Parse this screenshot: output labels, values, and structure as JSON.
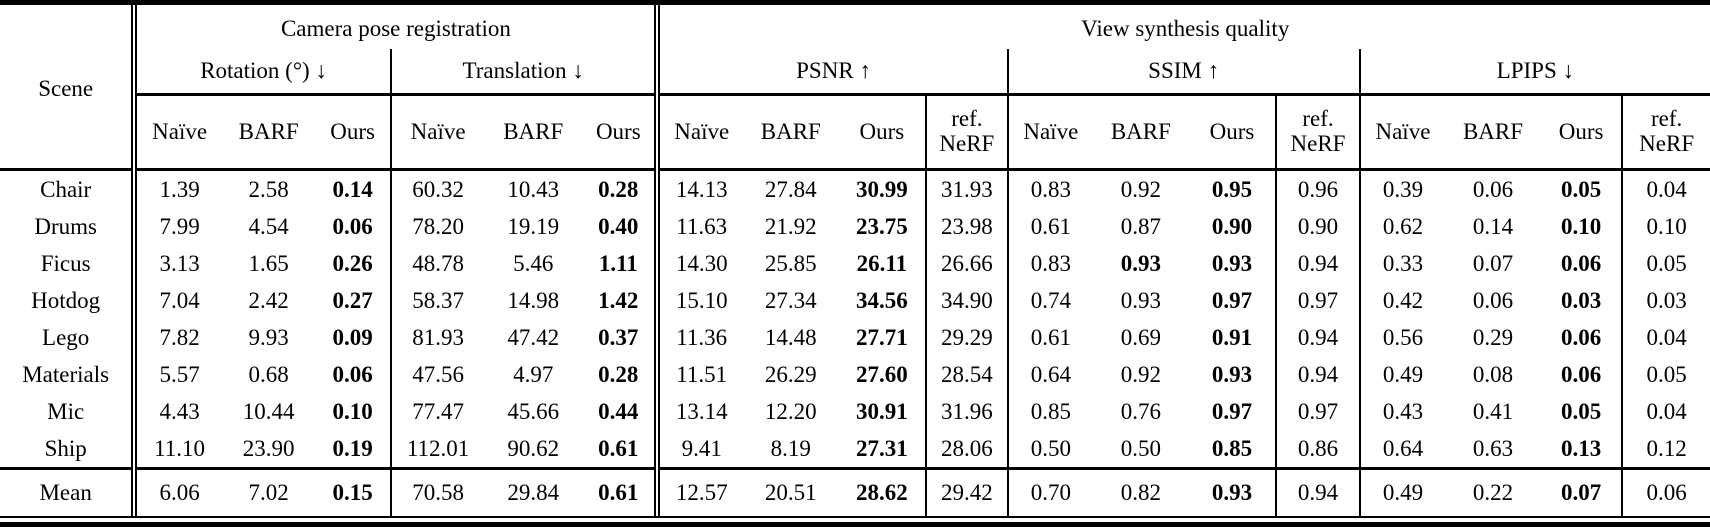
{
  "page": {
    "background": "#ffffff",
    "text_color": "#000000"
  },
  "table": {
    "row_header_label": "Scene",
    "groups": [
      {
        "label": "Camera pose registration"
      },
      {
        "label": "View synthesis quality"
      }
    ],
    "subgroups": [
      {
        "label": "Rotation (°) ↓"
      },
      {
        "label": "Translation ↓"
      },
      {
        "label": "PSNR ↑"
      },
      {
        "label": "SSIM ↑"
      },
      {
        "label": "LPIPS ↓"
      }
    ],
    "col_headers": [
      "Naïve",
      "BARF",
      "Ours",
      "Naïve",
      "BARF",
      "Ours",
      "Naïve",
      "BARF",
      "Ours",
      "ref. NeRF",
      "Naïve",
      "BARF",
      "Ours",
      "ref. NeRF",
      "Naïve",
      "BARF",
      "Ours",
      "ref. NeRF"
    ],
    "rows": [
      {
        "scene": "Chair",
        "values": [
          "1.39",
          "2.58",
          "0.14",
          "60.32",
          "10.43",
          "0.28",
          "14.13",
          "27.84",
          "30.99",
          "31.93",
          "0.83",
          "0.92",
          "0.95",
          "0.96",
          "0.39",
          "0.06",
          "0.05",
          "0.04"
        ],
        "bold": [
          2,
          5,
          8,
          12,
          16
        ]
      },
      {
        "scene": "Drums",
        "values": [
          "7.99",
          "4.54",
          "0.06",
          "78.20",
          "19.19",
          "0.40",
          "11.63",
          "21.92",
          "23.75",
          "23.98",
          "0.61",
          "0.87",
          "0.90",
          "0.90",
          "0.62",
          "0.14",
          "0.10",
          "0.10"
        ],
        "bold": [
          2,
          5,
          8,
          12,
          16
        ]
      },
      {
        "scene": "Ficus",
        "values": [
          "3.13",
          "1.65",
          "0.26",
          "48.78",
          "5.46",
          "1.11",
          "14.30",
          "25.85",
          "26.11",
          "26.66",
          "0.83",
          "0.93",
          "0.93",
          "0.94",
          "0.33",
          "0.07",
          "0.06",
          "0.05"
        ],
        "bold": [
          2,
          5,
          8,
          11,
          12,
          16
        ]
      },
      {
        "scene": "Hotdog",
        "values": [
          "7.04",
          "2.42",
          "0.27",
          "58.37",
          "14.98",
          "1.42",
          "15.10",
          "27.34",
          "34.56",
          "34.90",
          "0.74",
          "0.93",
          "0.97",
          "0.97",
          "0.42",
          "0.06",
          "0.03",
          "0.03"
        ],
        "bold": [
          2,
          5,
          8,
          12,
          16
        ]
      },
      {
        "scene": "Lego",
        "values": [
          "7.82",
          "9.93",
          "0.09",
          "81.93",
          "47.42",
          "0.37",
          "11.36",
          "14.48",
          "27.71",
          "29.29",
          "0.61",
          "0.69",
          "0.91",
          "0.94",
          "0.56",
          "0.29",
          "0.06",
          "0.04"
        ],
        "bold": [
          2,
          5,
          8,
          12,
          16
        ]
      },
      {
        "scene": "Materials",
        "values": [
          "5.57",
          "0.68",
          "0.06",
          "47.56",
          "4.97",
          "0.28",
          "11.51",
          "26.29",
          "27.60",
          "28.54",
          "0.64",
          "0.92",
          "0.93",
          "0.94",
          "0.49",
          "0.08",
          "0.06",
          "0.05"
        ],
        "bold": [
          2,
          5,
          8,
          12,
          16
        ]
      },
      {
        "scene": "Mic",
        "values": [
          "4.43",
          "10.44",
          "0.10",
          "77.47",
          "45.66",
          "0.44",
          "13.14",
          "12.20",
          "30.91",
          "31.96",
          "0.85",
          "0.76",
          "0.97",
          "0.97",
          "0.43",
          "0.41",
          "0.05",
          "0.04"
        ],
        "bold": [
          2,
          5,
          8,
          12,
          16
        ]
      },
      {
        "scene": "Ship",
        "values": [
          "11.10",
          "23.90",
          "0.19",
          "112.01",
          "90.62",
          "0.61",
          "9.41",
          "8.19",
          "27.31",
          "28.06",
          "0.50",
          "0.50",
          "0.85",
          "0.86",
          "0.64",
          "0.63",
          "0.13",
          "0.12"
        ],
        "bold": [
          2,
          5,
          8,
          12,
          16
        ]
      }
    ],
    "mean_row": {
      "scene": "Mean",
      "values": [
        "6.06",
        "7.02",
        "0.15",
        "70.58",
        "29.84",
        "0.61",
        "12.57",
        "20.51",
        "28.62",
        "29.42",
        "0.70",
        "0.82",
        "0.93",
        "0.94",
        "0.49",
        "0.22",
        "0.07",
        "0.06"
      ],
      "bold": [
        2,
        5,
        8,
        12,
        16
      ]
    }
  }
}
